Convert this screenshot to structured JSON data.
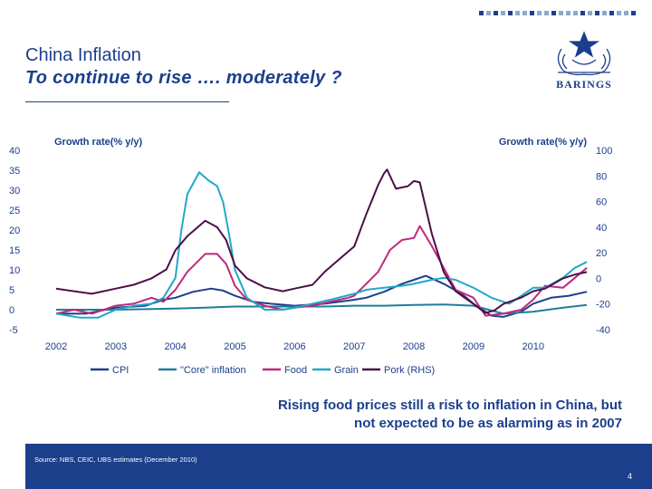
{
  "header": {
    "title_line1": "China Inflation",
    "title_line2": "To continue to rise …. moderately ?",
    "logo_text": "BARINGS",
    "brand_color": "#1c3f8c"
  },
  "caption": {
    "line1": "Rising food prices still a risk to inflation in China, but",
    "line2": "not expected to be as alarming as in 2007"
  },
  "footer": {
    "source": "Source: NBS, CEIC, UBS estimates (December 2010)",
    "page_number": "4"
  },
  "chart_data": {
    "type": "line",
    "left_axis_label": "Growth rate(% y/y)",
    "right_axis_label": "Growth rate(% y/y)",
    "x_ticks": [
      "2002",
      "2003",
      "2004",
      "2005",
      "2006",
      "2007",
      "2008",
      "2009",
      "2010"
    ],
    "xlim": [
      2002.0,
      2010.9
    ],
    "y_left": {
      "min": -5,
      "max": 40,
      "ticks": [
        "-5",
        "0",
        "5",
        "10",
        "15",
        "20",
        "25",
        "30",
        "35",
        "40"
      ]
    },
    "y_right": {
      "min": -40,
      "max": 100,
      "ticks": [
        "-40",
        "-20",
        "0",
        "20",
        "40",
        "60",
        "80",
        "100"
      ]
    },
    "grid": false,
    "legend_position": "bottom",
    "series": [
      {
        "name": "CPI",
        "axis": "left",
        "color": "#1c3f8c",
        "x": [
          2002.0,
          2002.5,
          2003.0,
          2003.5,
          2003.8,
          2004.0,
          2004.3,
          2004.6,
          2004.8,
          2005.0,
          2005.3,
          2005.6,
          2006.0,
          2006.5,
          2007.0,
          2007.2,
          2007.5,
          2007.8,
          2008.0,
          2008.2,
          2008.5,
          2008.8,
          2009.0,
          2009.3,
          2009.5,
          2009.8,
          2010.0,
          2010.3,
          2010.6,
          2010.9
        ],
        "y": [
          -1,
          -1,
          0.5,
          1,
          2.5,
          3,
          4.5,
          5.3,
          4.8,
          3.5,
          2,
          1.5,
          1,
          1.5,
          2.5,
          3,
          4.5,
          6.5,
          7.5,
          8.5,
          6.5,
          4,
          1.5,
          -1.5,
          -1.8,
          -0.5,
          1.5,
          3,
          3.5,
          4.5
        ]
      },
      {
        "name": "\"Core\" inflation",
        "axis": "left",
        "color": "#1f7d9c",
        "x": [
          2002.0,
          2003.0,
          2004.0,
          2004.5,
          2005.0,
          2005.5,
          2006.0,
          2006.5,
          2007.0,
          2007.5,
          2008.0,
          2008.5,
          2009.0,
          2009.5,
          2010.0,
          2010.5,
          2010.9
        ],
        "y": [
          0,
          0,
          0.3,
          0.5,
          0.8,
          0.8,
          0.8,
          0.8,
          1,
          1,
          1.2,
          1.3,
          1,
          -1,
          -0.5,
          0.5,
          1.2
        ]
      },
      {
        "name": "Food",
        "axis": "left",
        "color": "#c0287a",
        "x": [
          2002.0,
          2002.3,
          2002.6,
          2003.0,
          2003.3,
          2003.6,
          2003.8,
          2004.0,
          2004.2,
          2004.5,
          2004.7,
          2004.85,
          2005.0,
          2005.2,
          2005.5,
          2005.8,
          2006.0,
          2006.3,
          2006.6,
          2006.9,
          2007.0,
          2007.2,
          2007.4,
          2007.6,
          2007.8,
          2008.0,
          2008.1,
          2008.3,
          2008.5,
          2008.7,
          2009.0,
          2009.2,
          2009.5,
          2009.8,
          2010.0,
          2010.2,
          2010.5,
          2010.7,
          2010.9
        ],
        "y": [
          -1,
          0,
          -1,
          1,
          1.5,
          3,
          2,
          5,
          9.5,
          14,
          14,
          11.5,
          6,
          2.5,
          1,
          0,
          0.5,
          1,
          2,
          3,
          3.5,
          6.5,
          9.5,
          15,
          17.5,
          18,
          21,
          16,
          10.5,
          5,
          3,
          -1.5,
          -1,
          0,
          2.5,
          6,
          5.5,
          8,
          10.5
        ]
      },
      {
        "name": "Grain",
        "axis": "left",
        "color": "#23a8c8",
        "x": [
          2002.0,
          2002.4,
          2002.7,
          2003.0,
          2003.3,
          2003.6,
          2003.8,
          2004.0,
          2004.1,
          2004.2,
          2004.4,
          2004.55,
          2004.7,
          2004.8,
          2004.9,
          2005.0,
          2005.2,
          2005.5,
          2005.8,
          2006.0,
          2006.3,
          2006.6,
          2007.0,
          2007.2,
          2007.5,
          2007.8,
          2008.0,
          2008.3,
          2008.5,
          2008.7,
          2009.0,
          2009.3,
          2009.6,
          2010.0,
          2010.2,
          2010.5,
          2010.7,
          2010.9
        ],
        "y": [
          -1,
          -2,
          -2,
          0,
          1,
          1.5,
          3,
          8,
          20,
          29,
          34.5,
          32.5,
          31,
          27,
          19,
          10,
          3,
          0,
          0,
          0.5,
          1.5,
          2.5,
          4,
          5,
          5.5,
          6,
          6.5,
          7.5,
          8,
          7.5,
          5.5,
          3,
          1.5,
          5.5,
          5.5,
          8,
          10.5,
          12
        ]
      },
      {
        "name": "Pork (RHS)",
        "axis": "right",
        "color": "#4b1048",
        "x": [
          2002.0,
          2002.3,
          2002.6,
          2003.0,
          2003.3,
          2003.6,
          2003.85,
          2004.0,
          2004.2,
          2004.5,
          2004.7,
          2004.85,
          2005.0,
          2005.2,
          2005.5,
          2005.8,
          2006.0,
          2006.3,
          2006.5,
          2006.8,
          2007.0,
          2007.2,
          2007.4,
          2007.5,
          2007.55,
          2007.7,
          2007.9,
          2008.0,
          2008.1,
          2008.3,
          2008.5,
          2008.7,
          2009.0,
          2009.2,
          2009.35,
          2009.5,
          2009.8,
          2010.0,
          2010.2,
          2010.5,
          2010.7,
          2010.9
        ],
        "y": [
          -8,
          -10,
          -12,
          -8,
          -5,
          0,
          7,
          22,
          33,
          45,
          40,
          30,
          10,
          0,
          -7,
          -10,
          -8,
          -5,
          5,
          17,
          25,
          50,
          73,
          82,
          85,
          70,
          72,
          76,
          75,
          35,
          5,
          -10,
          -20,
          -27,
          -25,
          -20,
          -15,
          -10,
          -8,
          0,
          3,
          5
        ]
      }
    ]
  }
}
